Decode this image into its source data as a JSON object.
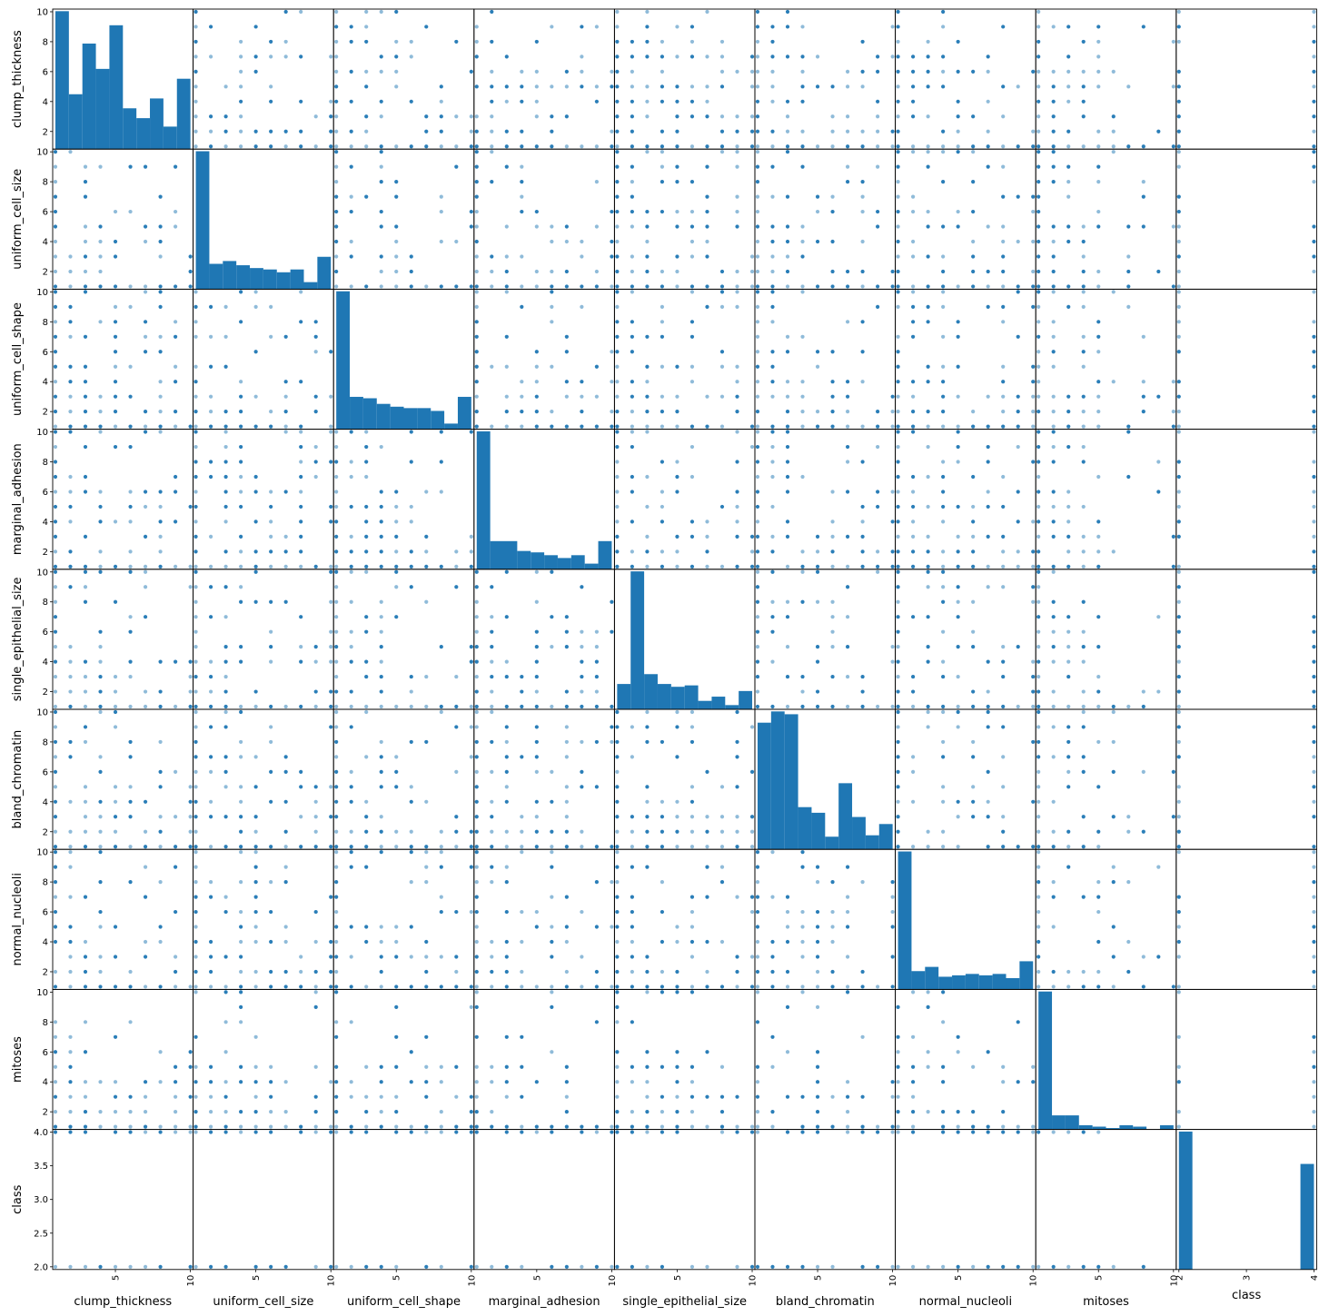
{
  "chart_data": {
    "type": "scatter",
    "kind": "scatter-matrix",
    "variables": [
      "clump_thickness",
      "uniform_cell_size",
      "uniform_cell_shape",
      "marginal_adhesion",
      "single_epithelial_size",
      "bland_chromatin",
      "normal_nucleoli",
      "mitoses",
      "class"
    ],
    "ranges": [
      [
        1,
        10
      ],
      [
        1,
        10
      ],
      [
        1,
        10
      ],
      [
        1,
        10
      ],
      [
        1,
        10
      ],
      [
        1,
        10
      ],
      [
        1,
        10
      ],
      [
        1,
        10
      ],
      [
        2,
        4
      ]
    ],
    "x_ticks": {
      "standard": {
        "values": [
          5,
          10
        ],
        "labels": [
          "5",
          "10"
        ]
      },
      "class": {
        "values": [
          2,
          3,
          4
        ],
        "labels": [
          "2",
          "3",
          "4"
        ]
      }
    },
    "y_ticks": {
      "standard": {
        "values": [
          2,
          4,
          6,
          8,
          10
        ],
        "labels": [
          "2",
          "4",
          "6",
          "8",
          "10"
        ]
      },
      "class": {
        "values": [
          2.0,
          2.5,
          3.0,
          3.5,
          4.0
        ],
        "labels": [
          "2.0",
          "2.5",
          "3.0",
          "3.5",
          "4.0"
        ]
      }
    },
    "histograms": [
      [
        9.8,
        3.9,
        7.5,
        5.7,
        8.8,
        2.9,
        2.2,
        3.6,
        1.6,
        5.0
      ],
      [
        9.8,
        1.8,
        2.0,
        1.7,
        1.5,
        1.4,
        1.2,
        1.4,
        0.5,
        2.3
      ],
      [
        9.8,
        2.3,
        2.2,
        1.8,
        1.6,
        1.5,
        1.5,
        1.3,
        0.4,
        2.3
      ],
      [
        9.8,
        2.0,
        2.0,
        1.3,
        1.2,
        1.0,
        0.8,
        1.0,
        0.4,
        2.0
      ],
      [
        1.8,
        9.8,
        2.5,
        1.8,
        1.6,
        1.7,
        0.6,
        0.9,
        0.3,
        1.3
      ],
      [
        9.0,
        9.8,
        9.6,
        3.0,
        2.6,
        0.9,
        4.7,
        2.3,
        1.0,
        1.8
      ],
      [
        9.8,
        1.3,
        1.6,
        0.9,
        1.0,
        1.1,
        1.0,
        1.1,
        0.8,
        2.0
      ],
      [
        9.8,
        1.0,
        1.0,
        0.3,
        0.2,
        0.1,
        0.3,
        0.2,
        0.0,
        0.3
      ],
      [
        9.8,
        0,
        0,
        0,
        0,
        0,
        0,
        0,
        0,
        7.5
      ]
    ],
    "marker_color": "#1f77b4",
    "bar_color": "#1f77b4"
  }
}
